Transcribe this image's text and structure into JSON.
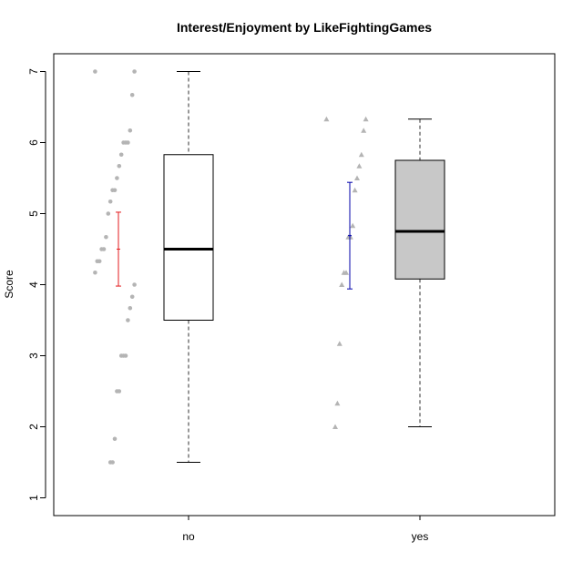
{
  "chart_data": {
    "type": "box",
    "title": "Interest/Enjoyment by LikeFightingGames",
    "xlabel": "",
    "ylabel": "Score",
    "ylim": [
      0.75,
      7.25
    ],
    "yticks": [
      "1",
      "2",
      "3",
      "4",
      "5",
      "6",
      "7"
    ],
    "categories": [
      "no",
      "yes"
    ],
    "boxes": [
      {
        "category": "no",
        "min": 1.5,
        "q1": 3.5,
        "median": 4.5,
        "q3": 5.83,
        "max": 7,
        "fill": "#ffffff"
      },
      {
        "category": "yes",
        "min": 2.0,
        "q1": 4.08,
        "median": 4.75,
        "q3": 5.75,
        "max": 6.33,
        "fill": "#c8c8c8"
      }
    ],
    "mean_bars": [
      {
        "category": "no",
        "mean": 4.5,
        "lower": 3.98,
        "upper": 5.02,
        "color": "#e31a1c"
      },
      {
        "category": "yes",
        "mean": 4.69,
        "lower": 3.94,
        "upper": 5.44,
        "color": "#0000aa"
      }
    ],
    "points": [
      {
        "category": "no",
        "shape": "circle",
        "values": [
          7,
          7,
          6.67,
          6.17,
          6,
          6,
          6,
          5.83,
          5.67,
          5.5,
          5.33,
          5.33,
          5.17,
          5,
          4.67,
          4.5,
          4.5,
          4.33,
          4.33,
          4.17,
          4,
          3.83,
          3.67,
          3.5,
          3,
          3,
          3,
          2.5,
          2.5,
          1.83,
          1.5,
          1.5
        ]
      },
      {
        "category": "yes",
        "shape": "triangle",
        "values": [
          6.33,
          6.33,
          6.17,
          5.83,
          5.67,
          5.5,
          5.33,
          4.83,
          4.67,
          4.67,
          4.17,
          4.17,
          4,
          3.17,
          2.33,
          2
        ]
      }
    ],
    "point_color": "#b4b4b4",
    "grid": false
  }
}
